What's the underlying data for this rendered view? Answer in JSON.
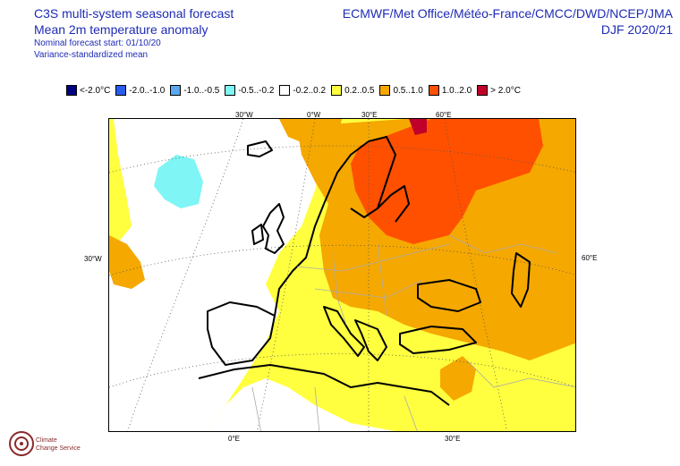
{
  "header": {
    "title_lines": [
      "C3S multi-system seasonal forecast",
      "Mean 2m temperature anomaly"
    ],
    "subtitle_lines": [
      "Nominal forecast start: 01/10/20",
      "Variance-standardized mean"
    ],
    "systems": "ECMWF/Met Office/Météo-France/CMCC/DWD/NCEP/JMA",
    "season": "DJF 2020/21"
  },
  "legend": [
    {
      "label": "<-2.0°C",
      "color": "#000080"
    },
    {
      "label": "-2.0..-1.0",
      "color": "#2a5cf0"
    },
    {
      "label": "-1.0..-0.5",
      "color": "#5aa8f0"
    },
    {
      "label": "-0.5..-0.2",
      "color": "#7ff5f5"
    },
    {
      "label": "-0.2..0.2",
      "color": "#ffffff"
    },
    {
      "label": "0.2..0.5",
      "color": "#ffff40"
    },
    {
      "label": "0.5..1.0",
      "color": "#f5a800"
    },
    {
      "label": "1.0..2.0",
      "color": "#ff5000"
    },
    {
      "label": "> 2.0°C",
      "color": "#c0002a"
    }
  ],
  "graticule_labels": {
    "top": [
      "30°W",
      "0°W",
      "30°E",
      "60°E"
    ],
    "left": "30°W",
    "right": "60°E",
    "bottom": [
      "0°E",
      "30°E"
    ]
  },
  "logo": {
    "lines": [
      "Climate",
      "Change Service"
    ]
  }
}
